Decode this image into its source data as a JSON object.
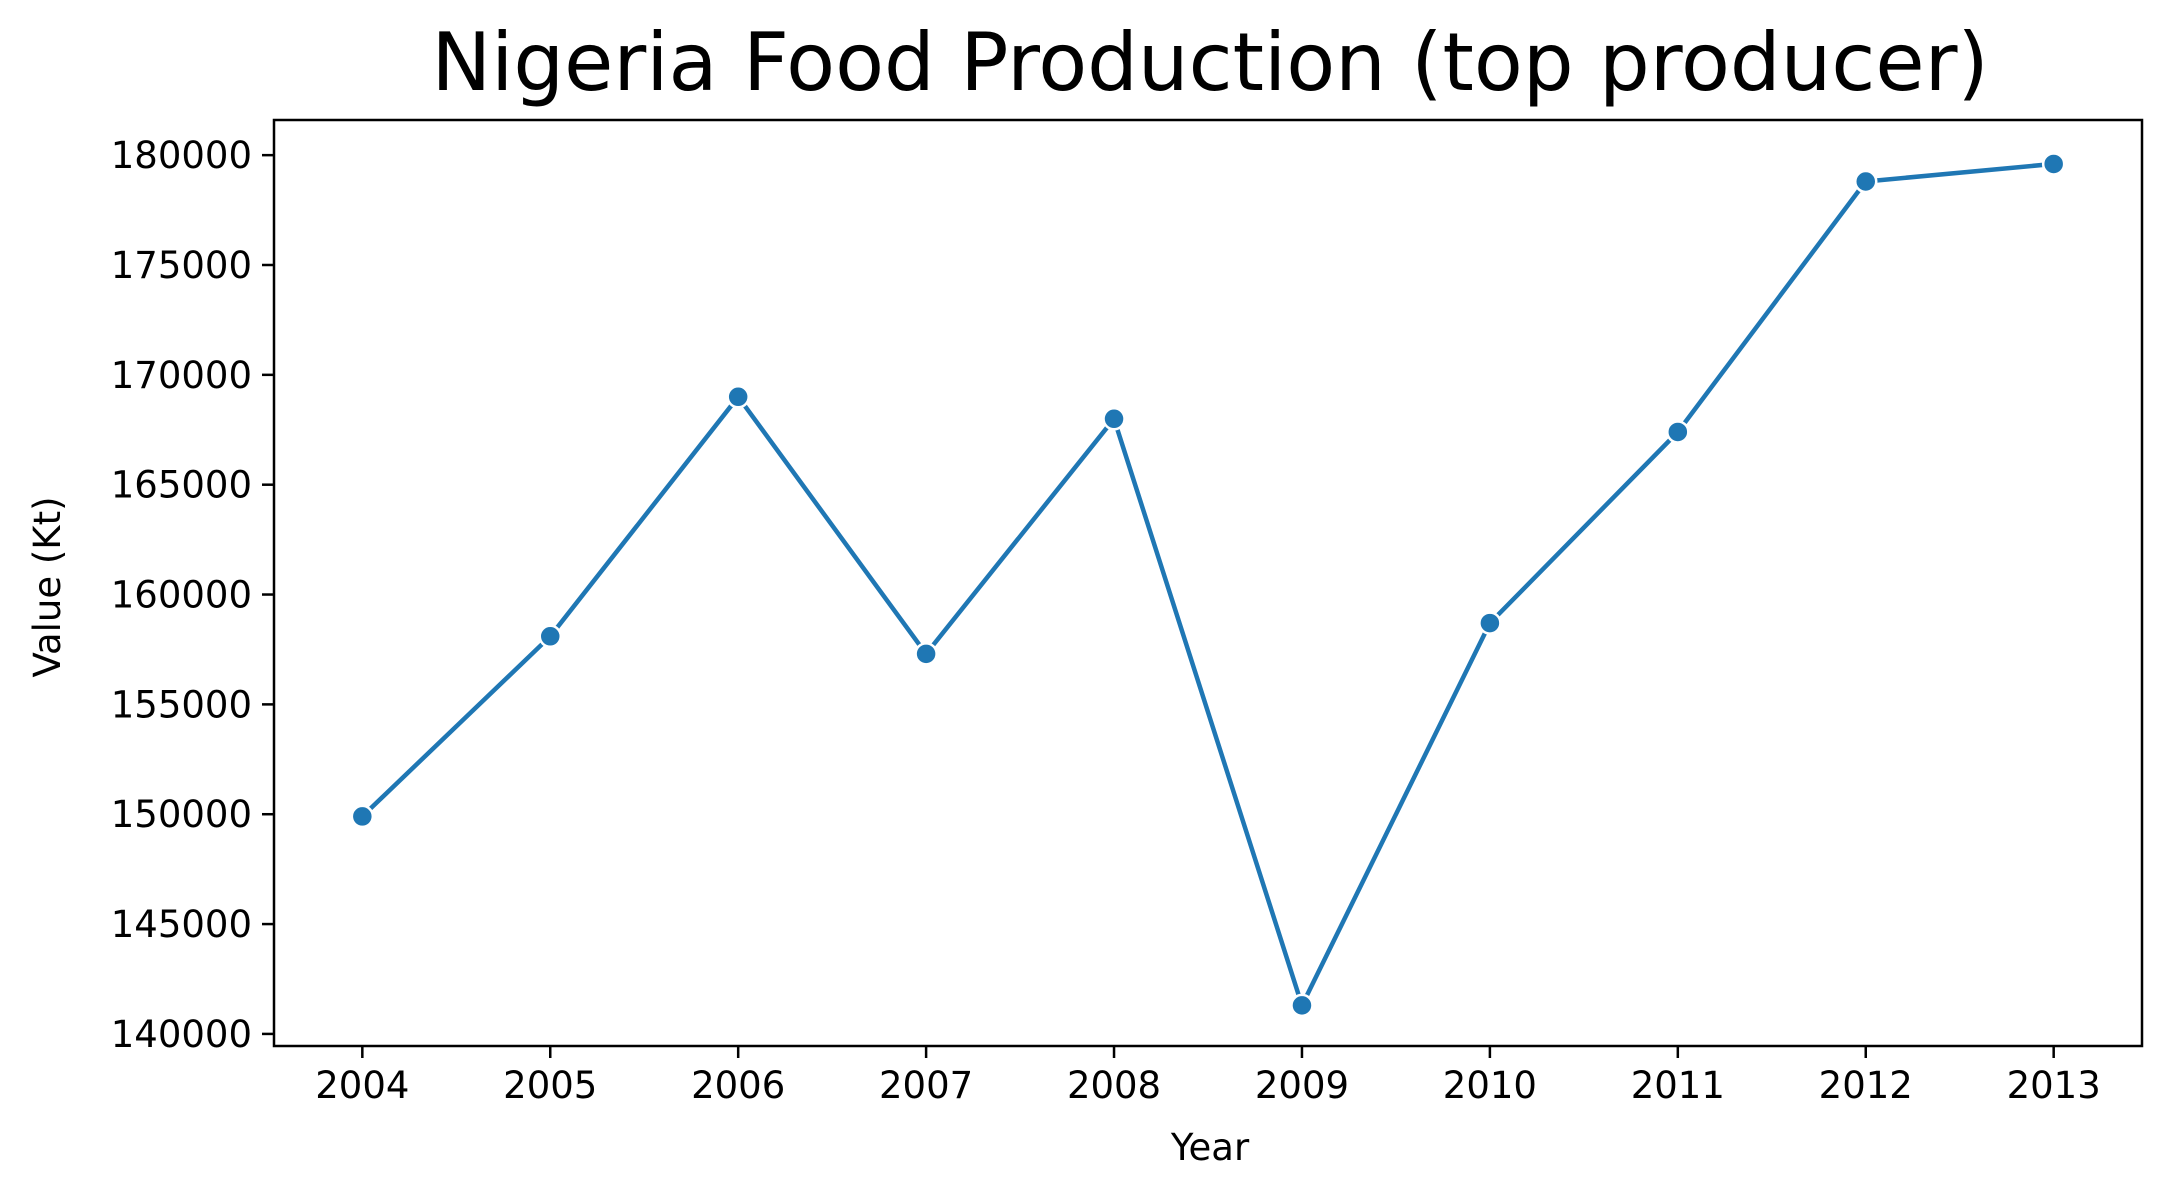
{
  "chart_data": {
    "type": "line",
    "title": "Nigeria Food Production (top producer)",
    "xlabel": "Year",
    "ylabel": "Value (Kt)",
    "x": [
      2004,
      2005,
      2006,
      2007,
      2008,
      2009,
      2010,
      2011,
      2012,
      2013
    ],
    "x_ticks": [
      "2004",
      "2005",
      "2006",
      "2007",
      "2008",
      "2009",
      "2010",
      "2011",
      "2012",
      "2013"
    ],
    "series": [
      {
        "values": [
          149900,
          158100,
          169000,
          157300,
          168000,
          141300,
          158700,
          167400,
          178800,
          179600
        ],
        "color": "#1f77b4"
      }
    ],
    "y_ticks": [
      140000,
      145000,
      150000,
      155000,
      160000,
      165000,
      170000,
      175000,
      180000
    ],
    "y_tick_labels": [
      "140000",
      "145000",
      "150000",
      "155000",
      "160000",
      "165000",
      "170000",
      "175000",
      "180000"
    ],
    "xlim": [
      2003.53,
      2013.47
    ],
    "ylim": [
      139450,
      181600
    ],
    "grid": false,
    "legend": "none"
  }
}
